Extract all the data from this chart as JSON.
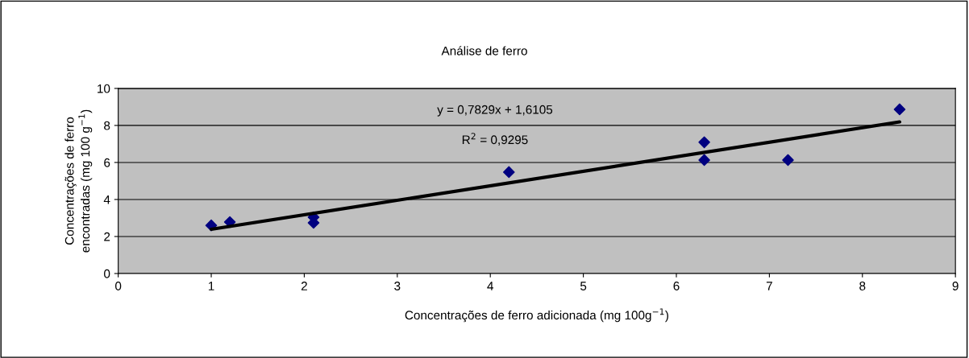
{
  "chart_data": {
    "type": "scatter",
    "title": "Análise de ferro",
    "xlabel": "Concentrações de ferro adicionada (mg 100g$^{−1}$)",
    "ylabel": "Concentrações de ferro\nencontradas (mg 100 g$^{ −1}$)",
    "series": [
      {
        "color": "#000080",
        "marker": "diamond",
        "x": [
          1.0,
          1.2,
          2.1,
          2.1,
          4.2,
          6.3,
          6.3,
          7.2,
          8.4
        ],
        "values": [
          2.6,
          2.78,
          3.04,
          2.74,
          5.48,
          7.09,
          6.13,
          6.13,
          8.87
        ]
      },
      {
        "type": "line",
        "color": "#000000",
        "marker": "none",
        "line_style": "solid",
        "x": [
          1.0,
          8.4
        ],
        "values": [
          2.39,
          8.19
        ]
      }
    ],
    "annotations": [
      "y = 0,7829x + 1,6105",
      "R$^{2}$ = 0,9295"
    ],
    "xlim": [
      0,
      9
    ],
    "xticks": [
      0,
      1,
      2,
      3,
      4,
      5,
      6,
      7,
      8,
      9
    ],
    "ylim": [
      0,
      10
    ],
    "yticks": [
      0,
      2,
      4,
      6,
      8,
      10
    ],
    "grid": "y",
    "legend": false
  }
}
